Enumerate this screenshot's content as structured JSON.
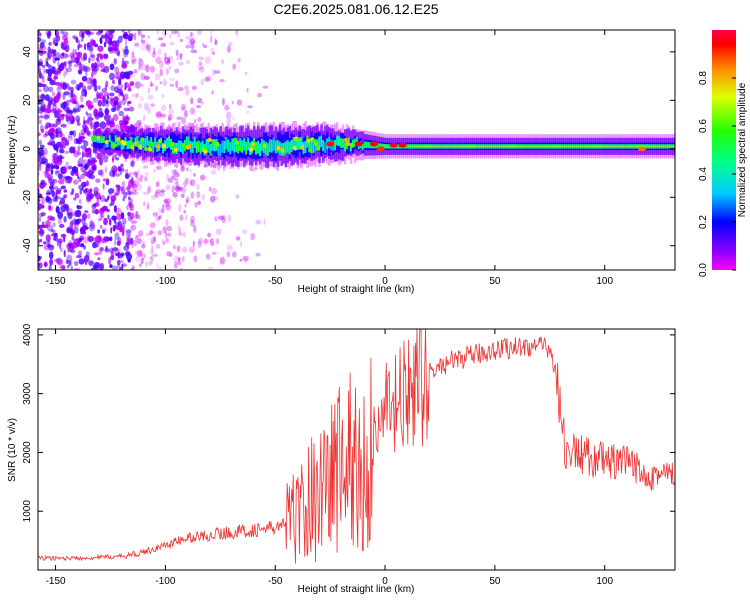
{
  "title": "C2E6.2025.081.06.12.E25",
  "chart_data": [
    {
      "type": "heatmap",
      "title": "C2E6.2025.081.06.12.E25",
      "xlabel": "Height of straight line (km)",
      "ylabel": "Frequency (Hz)",
      "xlim": [
        -158,
        132
      ],
      "ylim": [
        -50,
        49
      ],
      "xticks": [
        -150,
        -100,
        -50,
        0,
        50,
        100
      ],
      "yticks": [
        -40,
        -20,
        0,
        20,
        40
      ],
      "grid": false,
      "colorbar": {
        "label": "Normalized spectral amplitude",
        "range": [
          0.0,
          1.0
        ],
        "ticks": [
          0.0,
          0.2,
          0.4,
          0.6,
          0.8
        ],
        "colormap": [
          "#ff00ff",
          "#5a00ff",
          "#0000ff",
          "#00e5ff",
          "#00ff66",
          "#33ff00",
          "#ffee00",
          "#ff8800",
          "#ff0000",
          "#ff0044"
        ]
      },
      "features": {
        "band_center_hz": [
          [
            -130,
            3
          ],
          [
            -110,
            2
          ],
          [
            -80,
            1
          ],
          [
            -50,
            1
          ],
          [
            -30,
            2
          ],
          [
            -15,
            2
          ],
          [
            0,
            1
          ],
          [
            50,
            1
          ],
          [
            100,
            1
          ],
          [
            130,
            1
          ]
        ],
        "band_halfwidth_hz": [
          [
            -130,
            3
          ],
          [
            -100,
            5
          ],
          [
            -50,
            6
          ],
          [
            -25,
            5
          ],
          [
            -10,
            3
          ],
          [
            0,
            2
          ],
          [
            130,
            2
          ]
        ],
        "diffuse_scatter_region_km": [
          -158,
          -50
        ],
        "dense_scatter_region_km": [
          -158,
          -115
        ]
      }
    },
    {
      "type": "line",
      "xlabel": "Height of straight line (km)",
      "ylabel": "SNR (10 * v/v)",
      "xlim": [
        -158,
        132
      ],
      "ylim": [
        0,
        4100
      ],
      "xticks": [
        -150,
        -100,
        -50,
        0,
        50,
        100
      ],
      "yticks": [
        1000,
        2000,
        3000,
        4000
      ],
      "grid": false,
      "series": [
        {
          "color": "#ee3333",
          "x": [
            -158,
            -140,
            -120,
            -110,
            -100,
            -90,
            -80,
            -70,
            -60,
            -50,
            -45,
            -40,
            -35,
            -30,
            -25,
            -20,
            -15,
            -12,
            -10,
            -8,
            -5,
            0,
            5,
            10,
            15,
            20,
            25,
            30,
            40,
            50,
            60,
            70,
            75,
            78,
            80,
            82,
            90,
            100,
            110,
            120,
            132
          ],
          "values": [
            200,
            200,
            230,
            300,
            420,
            540,
            600,
            640,
            680,
            720,
            800,
            950,
            1150,
            1400,
            1600,
            1800,
            1900,
            1600,
            1600,
            1900,
            2300,
            2600,
            2800,
            2950,
            3150,
            3350,
            3450,
            3550,
            3650,
            3750,
            3800,
            3800,
            3750,
            3400,
            2600,
            2050,
            1950,
            1850,
            1800,
            1650,
            1600
          ]
        }
      ]
    }
  ]
}
